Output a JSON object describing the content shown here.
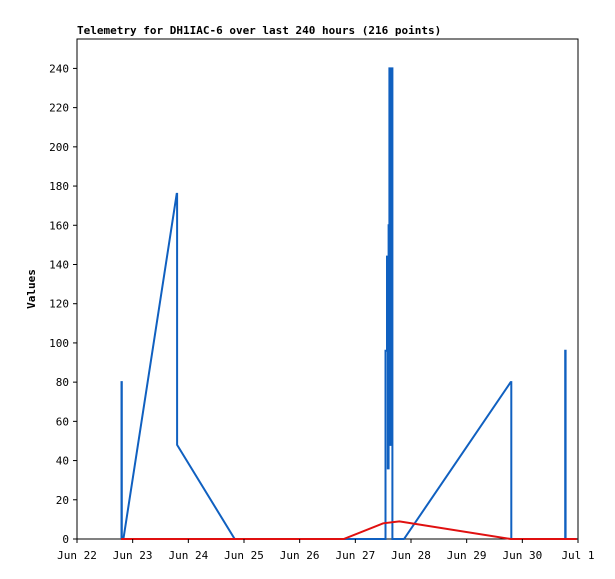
{
  "chart_data": {
    "type": "line",
    "title": "Telemetry for DH1IAC-6 over last 240 hours (216 points)",
    "ylabel": "Values",
    "xlabel": "",
    "x_ticks": [
      "Jun 22",
      "Jun 23",
      "Jun 24",
      "Jun 25",
      "Jun 26",
      "Jun 27",
      "Jun 28",
      "Jun 29",
      "Jun 30",
      "Jul 1"
    ],
    "y_ticks": [
      0,
      20,
      40,
      60,
      80,
      100,
      120,
      140,
      160,
      180,
      200,
      220,
      240
    ],
    "xlim": [
      "2023-06-22",
      "2023-07-01"
    ],
    "ylim": [
      0,
      255
    ],
    "grid": false,
    "legend": "none",
    "series": [
      {
        "color": "#1060c0",
        "points": [
          [
            "Jun 22 19:12",
            0
          ],
          [
            "Jun 22 19:12",
            80
          ],
          [
            "Jun 22 19:20",
            80
          ],
          [
            "Jun 22 19:20",
            0
          ],
          [
            "Jun 22 20:00",
            0
          ],
          [
            "Jun 23 19:00",
            176
          ],
          [
            "Jun 23 19:10",
            176
          ],
          [
            "Jun 23 19:10",
            48
          ],
          [
            "Jun 24 20:00",
            0
          ],
          [
            "Jun 27 13:00",
            0
          ],
          [
            "Jun 27 13:00",
            96
          ],
          [
            "Jun 27 13:40",
            96
          ],
          [
            "Jun 27 13:40",
            144
          ],
          [
            "Jun 27 14:00",
            144
          ],
          [
            "Jun 27 14:00",
            36
          ],
          [
            "Jun 27 14:20",
            36
          ],
          [
            "Jun 27 14:20",
            160
          ],
          [
            "Jun 27 14:40",
            160
          ],
          [
            "Jun 27 14:40",
            240
          ],
          [
            "Jun 27 15:10",
            240
          ],
          [
            "Jun 27 15:10",
            48
          ],
          [
            "Jun 27 15:30",
            48
          ],
          [
            "Jun 27 15:30",
            240
          ],
          [
            "Jun 27 16:00",
            240
          ],
          [
            "Jun 27 16:00",
            0
          ],
          [
            "Jun 27 21:00",
            0
          ],
          [
            "Jun 29 19:00",
            80
          ],
          [
            "Jun 29 19:15",
            80
          ],
          [
            "Jun 29 19:15",
            0
          ],
          [
            "Jun 30 18:30",
            0
          ],
          [
            "Jun 30 18:30",
            96
          ],
          [
            "Jun 30 18:40",
            96
          ],
          [
            "Jun 30 18:40",
            0
          ],
          [
            "Jun 30 23:30",
            0
          ]
        ]
      },
      {
        "color": "#e01010",
        "points": [
          [
            "Jun 22 19:00",
            0
          ],
          [
            "Jun 26 19:00",
            0
          ],
          [
            "Jun 27 12:00",
            8
          ],
          [
            "Jun 27 19:00",
            9
          ],
          [
            "Jun 29 19:00",
            0
          ],
          [
            "Jun 30 23:30",
            0
          ]
        ]
      }
    ]
  }
}
